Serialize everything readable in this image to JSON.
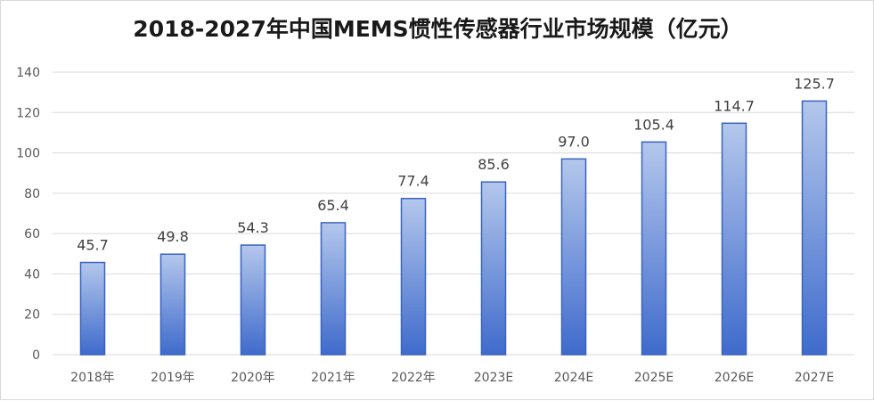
{
  "chart_data": {
    "type": "bar",
    "title": "2018-2027年中国MEMS惯性传感器行业市场规模（亿元）",
    "categories": [
      "2018年",
      "2019年",
      "2020年",
      "2021年",
      "2022年",
      "2023E",
      "2024E",
      "2025E",
      "2026E",
      "2027E"
    ],
    "values": [
      45.7,
      49.8,
      54.3,
      65.4,
      77.4,
      85.6,
      97.0,
      105.4,
      114.7,
      125.7
    ],
    "value_labels": [
      "45.7",
      "49.8",
      "54.3",
      "65.4",
      "77.4",
      "85.6",
      "97.0",
      "105.4",
      "114.7",
      "125.7"
    ],
    "ylim": [
      0,
      140
    ],
    "yticks": [
      0,
      20,
      40,
      60,
      80,
      100,
      120,
      140
    ],
    "grid": true,
    "legend": "none",
    "colors": {
      "bar_top": "#b4c7ec",
      "bar_bottom": "#3f6bcc",
      "bar_border": "#3a63bf",
      "grid": "#d9d9d9"
    }
  }
}
